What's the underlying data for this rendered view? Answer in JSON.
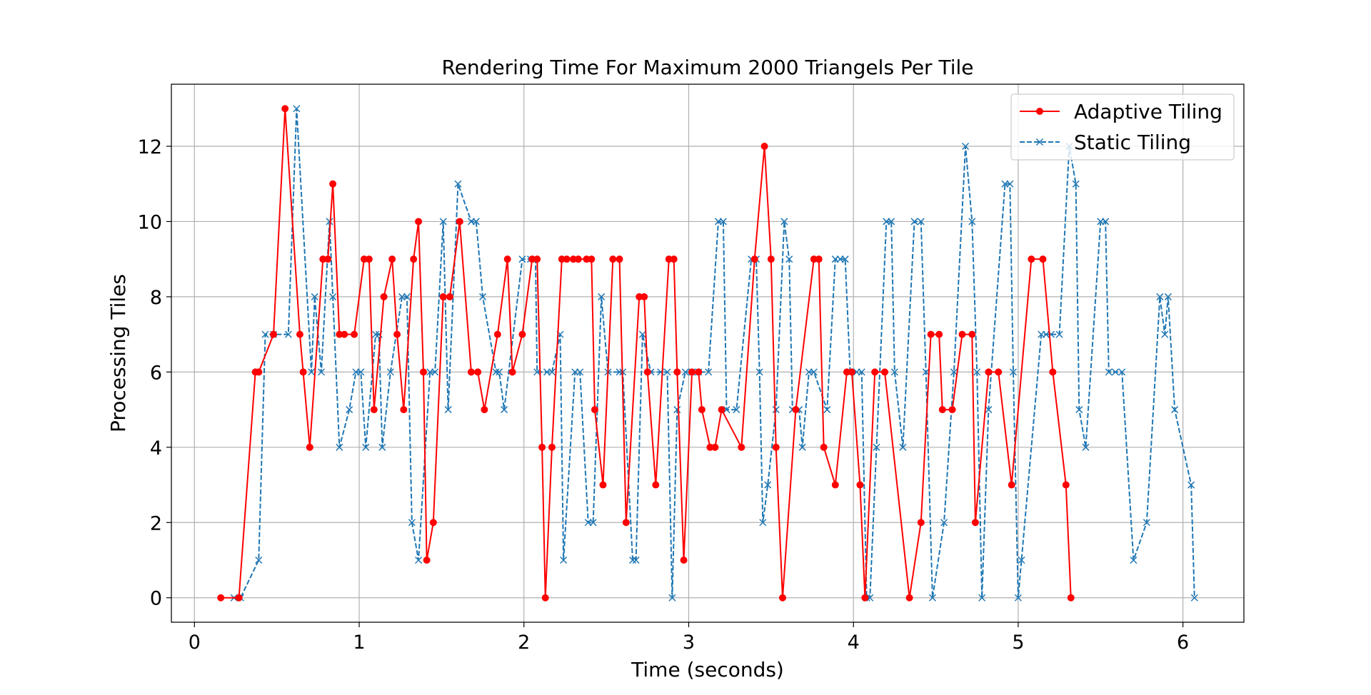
{
  "chart_data": {
    "type": "line",
    "title": "Rendering Time For Maximum 2000 Triangels Per Tile",
    "xlabel": "Time (seconds)",
    "ylabel": "Processing Tiles",
    "xlim": [
      -0.14,
      6.37
    ],
    "ylim": [
      -0.65,
      13.65
    ],
    "xticks": [
      0,
      1,
      2,
      3,
      4,
      5,
      6
    ],
    "yticks": [
      0,
      2,
      4,
      6,
      8,
      10,
      12
    ],
    "grid": true,
    "legend_position": "top-right",
    "series": [
      {
        "name": "Adaptive Tiling",
        "color": "#ff0000",
        "line_style": "solid",
        "marker": "circle",
        "points": [
          [
            0.16,
            0
          ],
          [
            0.27,
            0
          ],
          [
            0.37,
            6
          ],
          [
            0.39,
            6
          ],
          [
            0.48,
            7
          ],
          [
            0.55,
            13
          ],
          [
            0.64,
            7
          ],
          [
            0.66,
            6
          ],
          [
            0.7,
            4
          ],
          [
            0.78,
            9
          ],
          [
            0.81,
            9
          ],
          [
            0.84,
            11
          ],
          [
            0.88,
            7
          ],
          [
            0.91,
            7
          ],
          [
            0.97,
            7
          ],
          [
            1.03,
            9
          ],
          [
            1.06,
            9
          ],
          [
            1.09,
            5
          ],
          [
            1.15,
            8
          ],
          [
            1.2,
            9
          ],
          [
            1.23,
            7
          ],
          [
            1.27,
            5
          ],
          [
            1.33,
            9
          ],
          [
            1.36,
            10
          ],
          [
            1.39,
            6
          ],
          [
            1.41,
            1
          ],
          [
            1.45,
            2
          ],
          [
            1.51,
            8
          ],
          [
            1.55,
            8
          ],
          [
            1.61,
            10
          ],
          [
            1.68,
            6
          ],
          [
            1.72,
            6
          ],
          [
            1.76,
            5
          ],
          [
            1.84,
            7
          ],
          [
            1.9,
            9
          ],
          [
            1.93,
            6
          ],
          [
            1.99,
            7
          ],
          [
            2.05,
            9
          ],
          [
            2.08,
            9
          ],
          [
            2.11,
            4
          ],
          [
            2.13,
            0
          ],
          [
            2.17,
            4
          ],
          [
            2.23,
            9
          ],
          [
            2.26,
            9
          ],
          [
            2.3,
            9
          ],
          [
            2.33,
            9
          ],
          [
            2.38,
            9
          ],
          [
            2.41,
            9
          ],
          [
            2.43,
            5
          ],
          [
            2.48,
            3
          ],
          [
            2.54,
            9
          ],
          [
            2.58,
            9
          ],
          [
            2.62,
            2
          ],
          [
            2.7,
            8
          ],
          [
            2.73,
            8
          ],
          [
            2.75,
            6
          ],
          [
            2.8,
            3
          ],
          [
            2.88,
            9
          ],
          [
            2.91,
            9
          ],
          [
            2.93,
            6
          ],
          [
            2.97,
            1
          ],
          [
            3.02,
            6
          ],
          [
            3.06,
            6
          ],
          [
            3.08,
            5
          ],
          [
            3.13,
            4
          ],
          [
            3.16,
            4
          ],
          [
            3.2,
            5
          ],
          [
            3.32,
            4
          ],
          [
            3.4,
            9
          ],
          [
            3.46,
            12
          ],
          [
            3.5,
            9
          ],
          [
            3.53,
            4
          ],
          [
            3.57,
            0
          ],
          [
            3.65,
            5
          ],
          [
            3.76,
            9
          ],
          [
            3.79,
            9
          ],
          [
            3.82,
            4
          ],
          [
            3.89,
            3
          ],
          [
            3.96,
            6
          ],
          [
            3.99,
            6
          ],
          [
            4.04,
            3
          ],
          [
            4.07,
            0
          ],
          [
            4.13,
            6
          ],
          [
            4.19,
            6
          ],
          [
            4.34,
            0
          ],
          [
            4.41,
            2
          ],
          [
            4.47,
            7
          ],
          [
            4.52,
            7
          ],
          [
            4.54,
            5
          ],
          [
            4.6,
            5
          ],
          [
            4.66,
            7
          ],
          [
            4.72,
            7
          ],
          [
            4.74,
            2
          ],
          [
            4.82,
            6
          ],
          [
            4.88,
            6
          ],
          [
            4.96,
            3
          ],
          [
            5.08,
            9
          ],
          [
            5.15,
            9
          ],
          [
            5.21,
            6
          ],
          [
            5.29,
            3
          ],
          [
            5.32,
            0
          ]
        ]
      },
      {
        "name": "Static Tiling",
        "color": "#1f77b4",
        "line_style": "dashed",
        "marker": "x",
        "points": [
          [
            0.24,
            0
          ],
          [
            0.28,
            0
          ],
          [
            0.39,
            1
          ],
          [
            0.43,
            7
          ],
          [
            0.48,
            7
          ],
          [
            0.57,
            7
          ],
          [
            0.62,
            13
          ],
          [
            0.71,
            6
          ],
          [
            0.73,
            8
          ],
          [
            0.77,
            6
          ],
          [
            0.82,
            10
          ],
          [
            0.84,
            8
          ],
          [
            0.88,
            4
          ],
          [
            0.94,
            5
          ],
          [
            0.98,
            6
          ],
          [
            1.01,
            6
          ],
          [
            1.04,
            4
          ],
          [
            1.1,
            7
          ],
          [
            1.12,
            7
          ],
          [
            1.14,
            4
          ],
          [
            1.19,
            6
          ],
          [
            1.26,
            8
          ],
          [
            1.29,
            8
          ],
          [
            1.32,
            2
          ],
          [
            1.36,
            1
          ],
          [
            1.43,
            6
          ],
          [
            1.46,
            6
          ],
          [
            1.51,
            10
          ],
          [
            1.54,
            5
          ],
          [
            1.6,
            11
          ],
          [
            1.68,
            10
          ],
          [
            1.71,
            10
          ],
          [
            1.75,
            8
          ],
          [
            1.83,
            6
          ],
          [
            1.85,
            6
          ],
          [
            1.88,
            5
          ],
          [
            1.99,
            9
          ],
          [
            2.04,
            9
          ],
          [
            2.07,
            9
          ],
          [
            2.08,
            6
          ],
          [
            2.14,
            6
          ],
          [
            2.17,
            6
          ],
          [
            2.22,
            7
          ],
          [
            2.24,
            1
          ],
          [
            2.31,
            6
          ],
          [
            2.34,
            6
          ],
          [
            2.39,
            2
          ],
          [
            2.42,
            2
          ],
          [
            2.47,
            8
          ],
          [
            2.51,
            6
          ],
          [
            2.58,
            6
          ],
          [
            2.6,
            6
          ],
          [
            2.66,
            1
          ],
          [
            2.68,
            1
          ],
          [
            2.72,
            7
          ],
          [
            2.77,
            6
          ],
          [
            2.83,
            6
          ],
          [
            2.87,
            6
          ],
          [
            2.9,
            0
          ],
          [
            2.93,
            5
          ],
          [
            2.98,
            6
          ],
          [
            3.02,
            6
          ],
          [
            3.06,
            6
          ],
          [
            3.12,
            6
          ],
          [
            3.18,
            10
          ],
          [
            3.21,
            10
          ],
          [
            3.23,
            5
          ],
          [
            3.29,
            5
          ],
          [
            3.38,
            9
          ],
          [
            3.41,
            9
          ],
          [
            3.43,
            6
          ],
          [
            3.45,
            2
          ],
          [
            3.48,
            3
          ],
          [
            3.53,
            5
          ],
          [
            3.58,
            10
          ],
          [
            3.61,
            9
          ],
          [
            3.63,
            5
          ],
          [
            3.67,
            5
          ],
          [
            3.69,
            4
          ],
          [
            3.73,
            6
          ],
          [
            3.76,
            6
          ],
          [
            3.84,
            5
          ],
          [
            3.89,
            9
          ],
          [
            3.92,
            9
          ],
          [
            3.95,
            9
          ],
          [
            3.98,
            6
          ],
          [
            4.02,
            6
          ],
          [
            4.05,
            6
          ],
          [
            4.08,
            0
          ],
          [
            4.1,
            0
          ],
          [
            4.14,
            4
          ],
          [
            4.2,
            10
          ],
          [
            4.23,
            10
          ],
          [
            4.25,
            6
          ],
          [
            4.3,
            4
          ],
          [
            4.37,
            10
          ],
          [
            4.41,
            10
          ],
          [
            4.44,
            6
          ],
          [
            4.48,
            0
          ],
          [
            4.55,
            2
          ],
          [
            4.61,
            6
          ],
          [
            4.68,
            12
          ],
          [
            4.72,
            10
          ],
          [
            4.75,
            6
          ],
          [
            4.78,
            0
          ],
          [
            4.82,
            5
          ],
          [
            4.92,
            11
          ],
          [
            4.95,
            11
          ],
          [
            4.97,
            6
          ],
          [
            5.0,
            0
          ],
          [
            5.02,
            1
          ],
          [
            5.14,
            7
          ],
          [
            5.17,
            7
          ],
          [
            5.2,
            7
          ],
          [
            5.25,
            7
          ],
          [
            5.31,
            12
          ],
          [
            5.35,
            11
          ],
          [
            5.37,
            5
          ],
          [
            5.41,
            4
          ],
          [
            5.5,
            10
          ],
          [
            5.53,
            10
          ],
          [
            5.55,
            6
          ],
          [
            5.59,
            6
          ],
          [
            5.63,
            6
          ],
          [
            5.7,
            1
          ],
          [
            5.78,
            2
          ],
          [
            5.86,
            8
          ],
          [
            5.89,
            7
          ],
          [
            5.91,
            8
          ],
          [
            5.95,
            5
          ],
          [
            6.05,
            3
          ],
          [
            6.07,
            0
          ]
        ]
      }
    ]
  }
}
